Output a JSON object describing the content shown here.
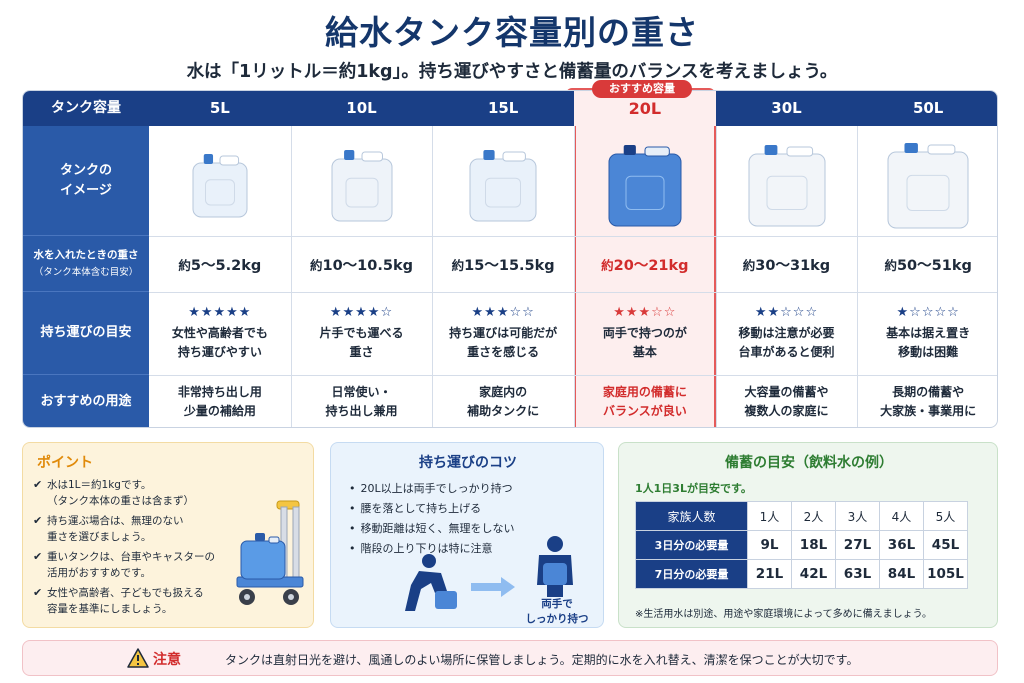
{
  "title": "給水タンク容量別の重さ",
  "subtitle": "水は「1リットル＝約1kg」。持ち運びやすさと備蓄量のバランスを考えましょう。",
  "table": {
    "corner_label": "タンク容量",
    "recommended_badge": "おすすめ容量",
    "row_labels": {
      "image": "タンクの\nイメージ",
      "weight_main": "水を入れたときの重さ",
      "weight_sub": "（タンク本体含む目安）",
      "carry": "持ち運びの目安",
      "usage": "おすすめの用途"
    },
    "columns": [
      {
        "capacity": "5L",
        "weight_prefix": "約",
        "weight": "5〜5.2kg",
        "stars": "★★★★★",
        "stars_level": 5,
        "carry_note": "女性や高齢者でも\n持ち運びやすい",
        "usage": "非常持ち出し用\n少量の補給用"
      },
      {
        "capacity": "10L",
        "weight_prefix": "約",
        "weight": "10〜10.5kg",
        "stars": "★★★★☆",
        "stars_level": 4,
        "carry_note": "片手でも運べる\n重さ",
        "usage": "日常使い・\n持ち出し兼用"
      },
      {
        "capacity": "15L",
        "weight_prefix": "約",
        "weight": "15〜15.5kg",
        "stars": "★★★☆☆",
        "stars_level": 3,
        "carry_note": "持ち運びは可能だが\n重さを感じる",
        "usage": "家庭内の\n補助タンクに"
      },
      {
        "capacity": "20L",
        "weight_prefix": "約",
        "weight": "20〜21kg",
        "stars": "★★★☆☆",
        "stars_level": 3,
        "carry_note": "両手で持つのが\n基本",
        "usage": "家庭用の備蓄に\nバランスが良い",
        "recommended": true
      },
      {
        "capacity": "30L",
        "weight_prefix": "約",
        "weight": "30〜31kg",
        "stars": "★★☆☆☆",
        "stars_level": 2,
        "carry_note": "移動は注意が必要\n台車があると便利",
        "usage": "大容量の備蓄や\n複数人の家庭に"
      },
      {
        "capacity": "50L",
        "weight_prefix": "約",
        "weight": "50〜51kg",
        "stars": "★☆☆☆☆",
        "stars_level": 1,
        "carry_note": "基本は据え置き\n移動は困難",
        "usage": "長期の備蓄や\n大家族・事業用に"
      }
    ]
  },
  "point": {
    "title": "ポイント",
    "items": [
      "水は1L＝約1kgです。\n（タンク本体の重さは含まず）",
      "持ち運ぶ場合は、無理のない\n重さを選びましょう。",
      "重いタンクは、台車やキャスターの\n活用がおすすめです。",
      "女性や高齢者、子どもでも扱える\n容量を基準にしましょう。"
    ]
  },
  "tips": {
    "title": "持ち運びのコツ",
    "items": [
      "20L以上は両手でしっかり持つ",
      "腰を落として持ち上げる",
      "移動距離は短く、無理をしない",
      "階段の上り下りは特に注意"
    ],
    "caption": "両手で\nしっかり持つ"
  },
  "stock": {
    "title": "備蓄の目安（飲料水の例）",
    "subtitle": "1人1日3Lが目安です。",
    "header_label": "家族人数",
    "people": [
      "1人",
      "2人",
      "3人",
      "4人",
      "5人"
    ],
    "rows": [
      {
        "label": "3日分の必要量",
        "values": [
          "9L",
          "18L",
          "27L",
          "36L",
          "45L"
        ]
      },
      {
        "label": "7日分の必要量",
        "values": [
          "21L",
          "42L",
          "63L",
          "84L",
          "105L"
        ]
      }
    ],
    "note": "※生活用水は別途、用途や家庭環境によって多めに備えましょう。"
  },
  "caution": {
    "label": "注意",
    "text": "タンクは直射日光を避け、風通しのよい場所に保管しましょう。定期的に水を入れ替え、清潔を保つことが大切です。"
  },
  "colors": {
    "header_navy": "#1a3f86",
    "label_blue": "#2a5aa8",
    "highlight_red": "#d22c2c",
    "point_orange": "#e08a0a",
    "stock_green": "#2e7d32"
  }
}
